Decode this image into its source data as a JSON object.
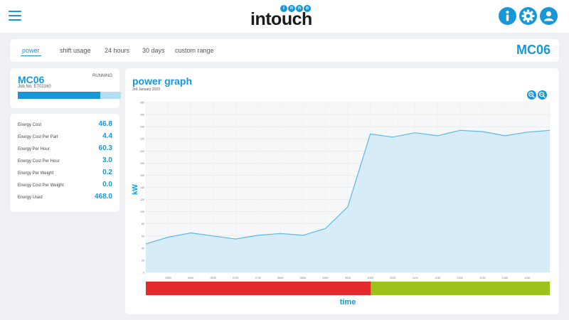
{
  "header": {
    "logo_text": "intouch",
    "logo_letters": [
      "i",
      "n",
      "n",
      "o"
    ],
    "icons": [
      "menu-icon",
      "info-icon",
      "gear-icon",
      "user-icon"
    ],
    "accent_color": "#1597d8"
  },
  "tabs": [
    {
      "label": "power",
      "active": true
    },
    {
      "label": "shift usage",
      "active": false
    },
    {
      "label": "24 hours",
      "active": false
    },
    {
      "label": "30 days",
      "active": false
    },
    {
      "label": "custom range",
      "active": false
    }
  ],
  "machine_heading": "MC06",
  "machine": {
    "name": "MC06",
    "status": "RUNNING",
    "job": "Job No. ET02160",
    "progress": 0.8
  },
  "stats": [
    {
      "label": "Energy Cost",
      "value": "46.8"
    },
    {
      "label": "Energy Cost Per Part",
      "value": "4.4"
    },
    {
      "label": "Energy Per Hour",
      "value": "60.3"
    },
    {
      "label": "Energy Cost Per Hour",
      "value": "3.0"
    },
    {
      "label": "Energy Per Weight",
      "value": "0.2"
    },
    {
      "label": "Energy Cost Per Weight",
      "value": "0.0"
    },
    {
      "label": "Energy Used",
      "value": "468.0"
    }
  ],
  "graph": {
    "title": "power graph",
    "date": "3rd January 2023",
    "zoom_in_icon": "zoom-in-icon",
    "zoom_out_icon": "zoom-out-icon"
  },
  "chart_data": {
    "type": "area",
    "xlabel": "time",
    "ylabel": "kW",
    "ylim": [
      0,
      280
    ],
    "yticks": [
      0,
      20,
      40,
      60,
      80,
      100,
      120,
      140,
      160,
      180,
      200,
      220,
      240,
      260,
      280
    ],
    "x_tick_labels": [
      "0530",
      "0600",
      "0630",
      "0700",
      "0730",
      "0800",
      "0830",
      "0900",
      "0930",
      "1000",
      "1030",
      "1100",
      "1130",
      "1200",
      "1230",
      "1300",
      "1330"
    ],
    "values": [
      47,
      58,
      65,
      60,
      55,
      61,
      64,
      61,
      72,
      108,
      228,
      223,
      230,
      225,
      234,
      232,
      225,
      231,
      234
    ],
    "grid": true,
    "fill_color": "#d8ecf7",
    "line_color": "#5bb8e8",
    "status_bar": [
      {
        "state": "off",
        "fraction": 0.557,
        "color": "#e32b2e"
      },
      {
        "state": "running",
        "fraction": 0.443,
        "color": "#9dc21b"
      }
    ]
  }
}
